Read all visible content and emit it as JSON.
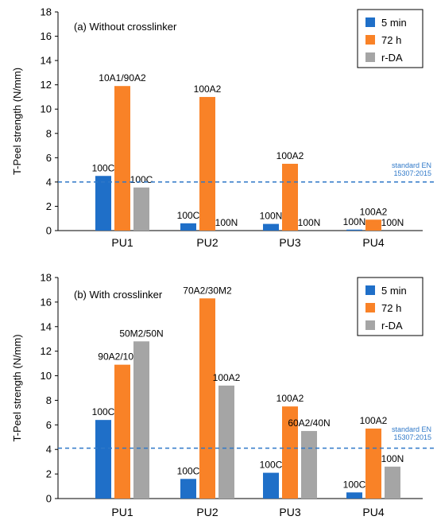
{
  "colors": {
    "five_min": "#1f6fc8",
    "seventy_two_h": "#f98227",
    "rda": "#a5a5a5",
    "standard_line": "#2f78c8",
    "standard_text": "#2f78c8",
    "axis": "#000000",
    "legend_border": "#000000"
  },
  "chart_data": [
    {
      "type": "bar",
      "title": "(a) Without crosslinker",
      "ylabel": "T-Peel strength (N/mm)",
      "xlabel": "",
      "ylim": [
        0,
        18
      ],
      "yticks": [
        0,
        2,
        4,
        6,
        8,
        10,
        12,
        14,
        16,
        18
      ],
      "grid": false,
      "legend_position": "top-right",
      "categories": [
        "PU1",
        "PU2",
        "PU3",
        "PU4"
      ],
      "series": [
        {
          "name": "5 min",
          "color_key": "five_min",
          "values": [
            4.5,
            0.6,
            0.55,
            0.08
          ],
          "labels": [
            "100C",
            "100C",
            "100N",
            "100N"
          ]
        },
        {
          "name": "72 h",
          "color_key": "seventy_two_h",
          "values": [
            11.9,
            11.0,
            5.5,
            0.9
          ],
          "labels": [
            "10A1/90A2",
            "100A2",
            "100A2",
            "100A2"
          ]
        },
        {
          "name": "r-DA",
          "color_key": "rda",
          "values": [
            3.55,
            0,
            0,
            0
          ],
          "labels": [
            "100C",
            "100N",
            "100N",
            "100N"
          ]
        }
      ],
      "reference_line": {
        "value": 4.0,
        "label_line1": "standard EN",
        "label_line2": "15307:2015"
      }
    },
    {
      "type": "bar",
      "title": "(b) With crosslinker",
      "ylabel": "T-Peel strength (N/mm)",
      "xlabel": "",
      "ylim": [
        0,
        18
      ],
      "yticks": [
        0,
        2,
        4,
        6,
        8,
        10,
        12,
        14,
        16,
        18
      ],
      "grid": false,
      "legend_position": "top-right",
      "categories": [
        "PU1",
        "PU2",
        "PU3",
        "PU4"
      ],
      "series": [
        {
          "name": "5 min",
          "color_key": "five_min",
          "values": [
            6.4,
            1.6,
            2.1,
            0.5
          ],
          "labels": [
            "100C",
            "100C",
            "100C",
            "100C"
          ]
        },
        {
          "name": "72 h",
          "color_key": "seventy_two_h",
          "values": [
            10.9,
            16.3,
            7.5,
            5.7
          ],
          "labels": [
            "90A2/10M2",
            "70A2/30M2",
            "100A2",
            "100A2"
          ]
        },
        {
          "name": "r-DA",
          "color_key": "rda",
          "values": [
            12.8,
            9.2,
            5.5,
            2.6
          ],
          "labels": [
            "50M2/50N",
            "100A2",
            "60A2/40N",
            "100N"
          ]
        }
      ],
      "reference_line": {
        "value": 4.1,
        "label_line1": "standard EN",
        "label_line2": "15307:2015"
      }
    }
  ]
}
